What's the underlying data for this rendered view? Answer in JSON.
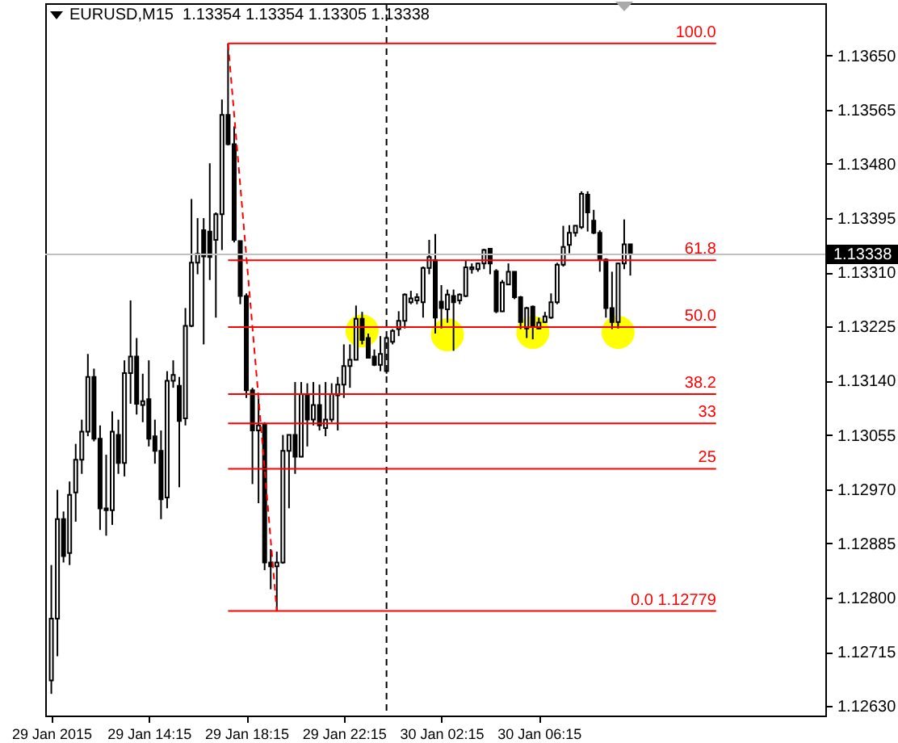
{
  "chart_data": {
    "type": "candlestick",
    "title": "EURUSD,M15  1.13354 1.13354 1.13305 1.13338",
    "x": [
      "2015-01-29T10:15",
      "2015-01-29T10:30",
      "2015-01-29T10:45",
      "2015-01-29T11:00",
      "2015-01-29T11:15",
      "2015-01-29T11:30",
      "2015-01-29T11:45",
      "2015-01-29T12:00",
      "2015-01-29T12:15",
      "2015-01-29T12:30",
      "2015-01-29T12:45",
      "2015-01-29T13:00",
      "2015-01-29T13:15",
      "2015-01-29T13:30",
      "2015-01-29T13:45",
      "2015-01-29T14:00",
      "2015-01-29T14:15",
      "2015-01-29T14:30",
      "2015-01-29T14:45",
      "2015-01-29T15:00",
      "2015-01-29T15:15",
      "2015-01-29T15:30",
      "2015-01-29T15:45",
      "2015-01-29T16:00",
      "2015-01-29T16:15",
      "2015-01-29T16:30",
      "2015-01-29T16:45",
      "2015-01-29T17:00",
      "2015-01-29T17:15",
      "2015-01-29T17:30",
      "2015-01-29T17:45",
      "2015-01-29T18:00",
      "2015-01-29T18:15",
      "2015-01-29T18:30",
      "2015-01-29T18:45",
      "2015-01-29T19:00",
      "2015-01-29T19:15",
      "2015-01-29T19:30",
      "2015-01-29T19:45",
      "2015-01-29T20:00",
      "2015-01-29T20:15",
      "2015-01-29T20:30",
      "2015-01-29T20:45",
      "2015-01-29T21:00",
      "2015-01-29T21:15",
      "2015-01-29T21:30",
      "2015-01-29T21:45",
      "2015-01-29T22:00",
      "2015-01-29T22:15",
      "2015-01-29T22:30",
      "2015-01-29T22:45",
      "2015-01-29T23:00",
      "2015-01-29T23:15",
      "2015-01-29T23:30",
      "2015-01-29T23:45",
      "2015-01-30T00:00",
      "2015-01-30T00:15",
      "2015-01-30T00:30",
      "2015-01-30T00:45",
      "2015-01-30T01:00",
      "2015-01-30T01:15",
      "2015-01-30T01:30",
      "2015-01-30T01:45",
      "2015-01-30T02:00",
      "2015-01-30T02:15",
      "2015-01-30T02:30",
      "2015-01-30T02:45",
      "2015-01-30T03:00",
      "2015-01-30T03:15",
      "2015-01-30T03:30",
      "2015-01-30T03:45",
      "2015-01-30T04:00",
      "2015-01-30T04:15",
      "2015-01-30T04:30",
      "2015-01-30T04:45",
      "2015-01-30T05:00",
      "2015-01-30T05:15",
      "2015-01-30T05:30",
      "2015-01-30T05:45",
      "2015-01-30T06:00",
      "2015-01-30T06:15",
      "2015-01-30T06:30",
      "2015-01-30T06:45",
      "2015-01-30T07:00",
      "2015-01-30T07:15",
      "2015-01-30T07:30",
      "2015-01-30T07:45",
      "2015-01-30T08:00",
      "2015-01-30T08:15",
      "2015-01-30T08:30",
      "2015-01-30T08:45",
      "2015-01-30T09:00",
      "2015-01-30T09:15",
      "2015-01-30T09:30",
      "2015-01-30T09:45",
      "2015-01-30T10:00"
    ],
    "ohlc": [
      [
        1.1267,
        1.12851,
        1.12649,
        1.12767
      ],
      [
        1.12767,
        1.12969,
        1.12708,
        1.12923
      ],
      [
        1.12923,
        1.12935,
        1.12855,
        1.12865
      ],
      [
        1.1287,
        1.12982,
        1.12851,
        1.12961
      ],
      [
        1.12965,
        1.13041,
        1.12919,
        1.13016
      ],
      [
        1.13016,
        1.13079,
        1.12994,
        1.1306
      ],
      [
        1.1306,
        1.13182,
        1.13053,
        1.13146
      ],
      [
        1.13146,
        1.13159,
        1.13045,
        1.13049
      ],
      [
        1.13049,
        1.1307,
        1.12906,
        1.1294
      ],
      [
        1.1294,
        1.13024,
        1.12897,
        1.12937
      ],
      [
        1.12937,
        1.13092,
        1.12914,
        1.1306
      ],
      [
        1.13055,
        1.13079,
        1.12994,
        1.13011
      ],
      [
        1.13011,
        1.13172,
        1.1299,
        1.13152
      ],
      [
        1.13152,
        1.13266,
        1.13104,
        1.13178
      ],
      [
        1.13178,
        1.13207,
        1.13087,
        1.13104
      ],
      [
        1.13102,
        1.13151,
        1.13075,
        1.13108
      ],
      [
        1.13111,
        1.13172,
        1.13037,
        1.13049
      ],
      [
        1.13053,
        1.13079,
        1.1301,
        1.1303
      ],
      [
        1.1303,
        1.13062,
        1.12923,
        1.12954
      ],
      [
        1.12957,
        1.13155,
        1.1294,
        1.1314
      ],
      [
        1.1314,
        1.13172,
        1.13129,
        1.13149
      ],
      [
        1.13132,
        1.13146,
        1.12973,
        1.13077
      ],
      [
        1.13081,
        1.13254,
        1.1307,
        1.13226
      ],
      [
        1.13226,
        1.13425,
        1.13224,
        1.13325
      ],
      [
        1.13325,
        1.13395,
        1.13307,
        1.13339
      ],
      [
        1.13376,
        1.13395,
        1.13197,
        1.13335
      ],
      [
        1.13374,
        1.13481,
        1.13298,
        1.13334
      ],
      [
        1.13361,
        1.13404,
        1.13239,
        1.13401
      ],
      [
        1.13401,
        1.13581,
        1.13345,
        1.13557
      ],
      [
        1.13557,
        1.13669,
        1.13509,
        1.13511
      ],
      [
        1.13511,
        1.13539,
        1.13357,
        1.13361
      ],
      [
        1.13359,
        1.13359,
        1.1326,
        1.13273
      ],
      [
        1.13273,
        1.13277,
        1.13113,
        1.13125
      ],
      [
        1.13125,
        1.13129,
        1.12978,
        1.13062
      ],
      [
        1.13062,
        1.13113,
        1.12948,
        1.1307
      ],
      [
        1.13072,
        1.13075,
        1.12843,
        1.12855
      ],
      [
        1.12855,
        1.12876,
        1.12813,
        1.12849
      ],
      [
        1.12849,
        1.12872,
        1.12779,
        1.12855
      ],
      [
        1.12855,
        1.13055,
        1.12853,
        1.1303
      ],
      [
        1.1303,
        1.13055,
        1.1294,
        1.13055
      ],
      [
        1.13055,
        1.13138,
        1.12994,
        1.13021
      ],
      [
        1.13021,
        1.13138,
        1.1302,
        1.13119
      ],
      [
        1.13119,
        1.13136,
        1.13037,
        1.13079
      ],
      [
        1.13079,
        1.13138,
        1.1307,
        1.13102
      ],
      [
        1.13102,
        1.13134,
        1.13062,
        1.1307
      ],
      [
        1.13066,
        1.13138,
        1.13053,
        1.13079
      ],
      [
        1.13079,
        1.13136,
        1.13075,
        1.13119
      ],
      [
        1.13117,
        1.13146,
        1.13062,
        1.13134
      ],
      [
        1.13134,
        1.13197,
        1.13113,
        1.13163
      ],
      [
        1.13163,
        1.13197,
        1.13129,
        1.13173
      ],
      [
        1.13173,
        1.13258,
        1.13173,
        1.13237
      ],
      [
        1.13237,
        1.13248,
        1.13197,
        1.13204
      ],
      [
        1.13207,
        1.13214,
        1.13176,
        1.13176
      ],
      [
        1.13178,
        1.13189,
        1.13163,
        1.13165
      ],
      [
        1.13165,
        1.1321,
        1.13155,
        1.13182
      ],
      [
        1.13155,
        1.1321,
        1.13151,
        1.13207
      ],
      [
        1.13201,
        1.13221,
        1.13197,
        1.13218
      ],
      [
        1.13221,
        1.13249,
        1.1321,
        1.13234
      ],
      [
        1.13234,
        1.13277,
        1.13222,
        1.13275
      ],
      [
        1.13263,
        1.13281,
        1.1326,
        1.13269
      ],
      [
        1.13266,
        1.13277,
        1.1326,
        1.13271
      ],
      [
        1.13263,
        1.13319,
        1.13239,
        1.13317
      ],
      [
        1.13317,
        1.13361,
        1.13307,
        1.13334
      ],
      [
        1.13329,
        1.1337,
        1.13214,
        1.13239
      ],
      [
        1.13264,
        1.1329,
        1.13222,
        1.13254
      ],
      [
        1.13252,
        1.13283,
        1.13231,
        1.13275
      ],
      [
        1.13273,
        1.13283,
        1.13187,
        1.13263
      ],
      [
        1.13266,
        1.13277,
        1.1326,
        1.13275
      ],
      [
        1.13273,
        1.13328,
        1.13271,
        1.13318
      ],
      [
        1.13315,
        1.13324,
        1.13308,
        1.13318
      ],
      [
        1.13315,
        1.13325,
        1.13311,
        1.13324
      ],
      [
        1.13324,
        1.13347,
        1.13315,
        1.13345
      ],
      [
        1.13347,
        1.13347,
        1.13307,
        1.13324
      ],
      [
        1.13312,
        1.13315,
        1.13246,
        1.13249
      ],
      [
        1.13249,
        1.13298,
        1.13248,
        1.13294
      ],
      [
        1.13291,
        1.13324,
        1.1329,
        1.13311
      ],
      [
        1.13311,
        1.13311,
        1.13268,
        1.13271
      ],
      [
        1.13271,
        1.13273,
        1.13221,
        1.13232
      ],
      [
        1.13222,
        1.13256,
        1.13207,
        1.13254
      ],
      [
        1.13256,
        1.13258,
        1.13205,
        1.13224
      ],
      [
        1.13222,
        1.13239,
        1.13221,
        1.13231
      ],
      [
        1.13232,
        1.13248,
        1.13231,
        1.13241
      ],
      [
        1.13239,
        1.13277,
        1.13237,
        1.13263
      ],
      [
        1.13263,
        1.13325,
        1.1326,
        1.13322
      ],
      [
        1.13322,
        1.13383,
        1.13319,
        1.1335
      ],
      [
        1.13353,
        1.13384,
        1.1334,
        1.13372
      ],
      [
        1.13372,
        1.13384,
        1.13366,
        1.13383
      ],
      [
        1.13381,
        1.13437,
        1.13378,
        1.13433
      ],
      [
        1.13432,
        1.13437,
        1.13374,
        1.13404
      ],
      [
        1.13391,
        1.13408,
        1.1337,
        1.13372
      ],
      [
        1.13372,
        1.13376,
        1.13311,
        1.1333
      ],
      [
        1.1333,
        1.13332,
        1.13239,
        1.13254
      ],
      [
        1.13254,
        1.13311,
        1.13221,
        1.13232
      ],
      [
        1.13232,
        1.13325,
        1.13222,
        1.13324
      ],
      [
        1.13324,
        1.13393,
        1.13315,
        1.13354
      ],
      [
        1.13354,
        1.13354,
        1.13305,
        1.13338
      ]
    ],
    "series": [
      {
        "type": "scatter",
        "color": "#ffff00",
        "x": [
          "2015-01-29T23:00",
          "2015-01-30T02:30",
          "2015-01-30T06:00",
          "2015-01-30T09:30"
        ],
        "values": [
          1.13218,
          1.13212,
          1.13216,
          1.13216
        ]
      },
      {
        "type": "line",
        "color": "#ff0000",
        "line_style": "dashed",
        "x": [
          "2015-01-29T17:30",
          "2015-01-29T19:30"
        ],
        "values": [
          1.13669,
          1.12779
        ]
      }
    ],
    "xlim": [
      "2015-01-29T10:00",
      "2015-01-30T18:00"
    ],
    "xticks": [
      {
        "value": "2015-01-29T10:15",
        "label": "29 Jan 2015"
      },
      {
        "value": "2015-01-29T14:15",
        "label": "29 Jan 14:15"
      },
      {
        "value": "2015-01-29T18:15",
        "label": "29 Jan 18:15"
      },
      {
        "value": "2015-01-29T22:15",
        "label": "29 Jan 22:15"
      },
      {
        "value": "2015-01-30T02:15",
        "label": "30 Jan 02:15"
      },
      {
        "value": "2015-01-30T06:15",
        "label": "30 Jan 06:15"
      }
    ],
    "ylim": [
      1.12615,
      1.13732
    ],
    "yticks": [
      {
        "value": 1.1365,
        "label": "1.13650"
      },
      1.13565,
      {
        "value": 1.1348,
        "label": "1.13480"
      },
      1.13395,
      {
        "value": 1.1331,
        "label": "1.13310"
      },
      1.13225,
      {
        "value": 1.1314,
        "label": "1.13140"
      },
      1.13055,
      {
        "value": 1.1297,
        "label": "1.12970"
      },
      1.12885,
      {
        "value": 1.128,
        "label": "1.12800"
      },
      1.12715,
      {
        "value": 1.1263,
        "label": "1.12630"
      }
    ],
    "ref_lines": [
      {
        "axis": "y",
        "value": 1.13338,
        "label": "1.13338",
        "color": "#c0c0c0"
      },
      {
        "axis": "x",
        "value": "2015-01-30T00:00",
        "color": "#000000",
        "line_style": "dashed"
      },
      {
        "axis": "y",
        "value": 1.13669,
        "color": "#ff0000"
      },
      {
        "axis": "y",
        "value": 1.13329,
        "color": "#ff0000"
      },
      {
        "axis": "y",
        "value": 1.13224,
        "color": "#ff0000"
      },
      {
        "axis": "y",
        "value": 1.13119,
        "color": "#ff0000"
      },
      {
        "axis": "y",
        "value": 1.13073,
        "color": "#ff0000"
      },
      {
        "axis": "y",
        "value": 1.13002,
        "color": "#ff0000"
      },
      {
        "axis": "y",
        "value": 1.12779,
        "color": "#ff0000"
      }
    ],
    "annotations": [
      "100.0",
      "61.8",
      "50.0",
      "38.2",
      "33",
      "25",
      "0.0 1.12779"
    ],
    "grid": false
  }
}
